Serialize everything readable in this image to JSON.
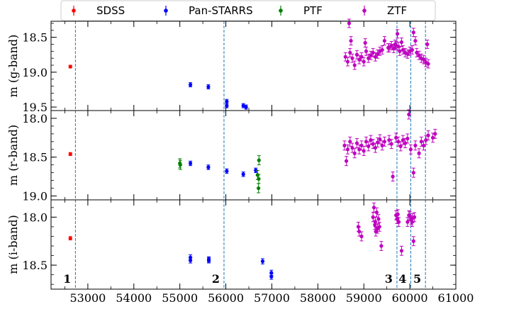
{
  "chart_data": {
    "type": "scatter",
    "title": "",
    "xlabel": "",
    "xlim": [
      52200,
      61000
    ],
    "x_ticks": [
      53000,
      54000,
      55000,
      56000,
      57000,
      58000,
      59000,
      60000,
      61000
    ],
    "legend": {
      "placement": "top",
      "entries": [
        {
          "name": "SDSS",
          "color": "#ff0000"
        },
        {
          "name": "Pan-STARRS",
          "color": "#0000ff"
        },
        {
          "name": "PTF",
          "color": "#008000"
        },
        {
          "name": "ZTF",
          "color": "#bf00bf"
        }
      ]
    },
    "vlines": [
      {
        "x": 52730,
        "label": "1"
      },
      {
        "x": 55960,
        "label": "2"
      },
      {
        "x": 59720,
        "label": "3"
      },
      {
        "x": 60020,
        "label": "4"
      },
      {
        "x": 60340,
        "label": "5"
      }
    ],
    "panels": [
      {
        "ylabel": "m (g-band)",
        "ylim": [
          19.55,
          18.27
        ],
        "y_ticks": [
          18.5,
          19.0,
          19.5
        ],
        "y_tick_labels": [
          "18.5",
          "19.0",
          "19.5"
        ],
        "series": [
          {
            "name": "SDSS",
            "x": [
              52620
            ],
            "y": [
              18.92
            ],
            "err": 0.01
          },
          {
            "name": "Pan-STARRS",
            "x": [
              55230,
              55620,
              56020,
              56020,
              56380,
              56440
            ],
            "y": [
              19.18,
              19.21,
              19.42,
              19.48,
              19.48,
              19.5
            ],
            "err": 0.02
          },
          {
            "name": "ZTF",
            "x": [
              58680,
              58720,
              59030,
              59450,
              59530,
              59700,
              59730,
              59820,
              60080,
              60120,
              60380,
              58600,
              58650,
              58700,
              58750,
              58800,
              58850,
              58900,
              58950,
              59000,
              59050,
              59100,
              59150,
              59200,
              59250,
              59300,
              59350,
              59400,
              59550,
              59600,
              59650,
              59680,
              59750,
              59780,
              59850,
              59900,
              59950,
              60000,
              60050,
              60150,
              60200,
              60250,
              60300,
              60350,
              60400
            ],
            "y": [
              18.3,
              18.55,
              18.58,
              18.55,
              18.65,
              18.62,
              18.45,
              18.57,
              18.43,
              18.55,
              18.6,
              18.78,
              18.85,
              18.72,
              18.8,
              18.9,
              18.75,
              18.82,
              18.78,
              18.85,
              18.7,
              18.8,
              18.76,
              18.72,
              18.78,
              18.74,
              18.7,
              18.68,
              18.65,
              18.62,
              18.66,
              18.6,
              18.63,
              18.7,
              18.68,
              18.72,
              18.74,
              18.7,
              18.68,
              18.72,
              18.76,
              18.8,
              18.82,
              18.86,
              18.88
            ],
            "err": 0.05
          }
        ]
      },
      {
        "ylabel": "m (r-band)",
        "ylim": [
          19.05,
          17.9
        ],
        "y_ticks": [
          18.0,
          18.5,
          19.0
        ],
        "y_tick_labels": [
          "18.0",
          "18.5",
          "19.0"
        ],
        "series": [
          {
            "name": "SDSS",
            "x": [
              52620
            ],
            "y": [
              18.46
            ],
            "err": 0.01
          },
          {
            "name": "Pan-STARRS",
            "x": [
              55230,
              55620,
              56020,
              56380,
              56650
            ],
            "y": [
              18.58,
              18.63,
              18.68,
              18.72,
              18.67
            ],
            "err": 0.02
          },
          {
            "name": "PTF",
            "x": [
              55000,
              55010,
              56690,
              56710,
              56720,
              56715
            ],
            "y": [
              18.58,
              18.6,
              18.73,
              18.9,
              18.54,
              18.78
            ],
            "err": 0.05
          },
          {
            "name": "ZTF",
            "x": [
              58620,
              59630,
              59980,
              60080,
              60550,
              58580,
              58650,
              58700,
              58750,
              58800,
              58850,
              58900,
              58950,
              59000,
              59050,
              59100,
              59150,
              59200,
              59250,
              59300,
              59350,
              59400,
              59450,
              59550,
              59600,
              59700,
              59750,
              59800,
              59850,
              59900,
              59950,
              60020,
              60120,
              60200,
              60250,
              60300,
              60350,
              60400,
              60500
            ],
            "y": [
              18.55,
              18.75,
              17.95,
              18.7,
              18.2,
              18.35,
              18.4,
              18.3,
              18.38,
              18.45,
              18.32,
              18.4,
              18.35,
              18.42,
              18.3,
              18.36,
              18.28,
              18.33,
              18.38,
              18.31,
              18.27,
              18.35,
              18.3,
              18.28,
              18.33,
              18.25,
              18.3,
              18.36,
              18.28,
              18.32,
              18.26,
              18.4,
              18.35,
              18.45,
              18.3,
              18.35,
              18.28,
              18.22,
              18.25
            ],
            "err": 0.05
          }
        ]
      },
      {
        "ylabel": "m (i-band)",
        "ylim": [
          18.75,
          17.82
        ],
        "y_ticks": [
          18.0,
          18.5
        ],
        "y_tick_labels": [
          "18.0",
          "18.5"
        ],
        "series": [
          {
            "name": "SDSS",
            "x": [
              52620
            ],
            "y": [
              18.22
            ],
            "err": 0.01
          },
          {
            "name": "Pan-STARRS",
            "x": [
              55230,
              55230,
              55630,
              55630,
              56800,
              56990,
              56990
            ],
            "y": [
              18.42,
              18.45,
              18.44,
              18.45,
              18.46,
              18.58,
              18.62
            ],
            "err": 0.02
          },
          {
            "name": "ZTF",
            "x": [
              58880,
              58900,
              58950,
              59250,
              59300,
              59380,
              59820,
              59950,
              59980,
              60050,
              60100,
              60080,
              59200,
              59220,
              59240,
              59260,
              59280,
              59320,
              59340,
              59700,
              59720,
              59740,
              59760,
              60000,
              60030,
              60060
            ],
            "y": [
              18.1,
              18.15,
              18.2,
              18.05,
              18.12,
              18.3,
              18.35,
              18.05,
              17.98,
              18.05,
              18.0,
              18.25,
              18.0,
              17.9,
              18.08,
              18.15,
              17.95,
              18.02,
              18.1,
              17.98,
              18.02,
              17.97,
              18.05,
              17.99,
              18.03,
              18.01
            ],
            "err": 0.04
          }
        ]
      }
    ]
  }
}
